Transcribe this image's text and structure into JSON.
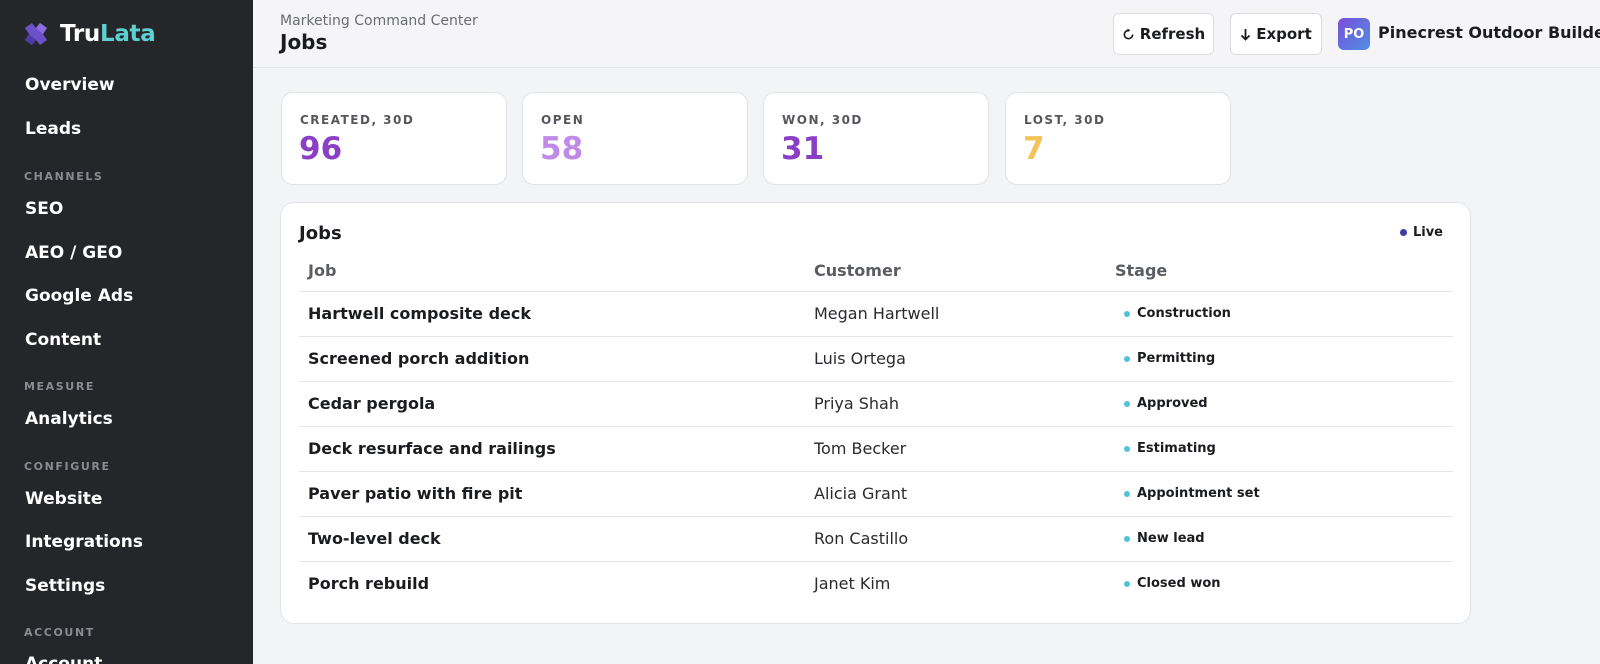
{
  "app": {
    "logo_part1": "Tru",
    "logo_part2": "Lata"
  },
  "sidebar": {
    "items": [
      {
        "label": "Overview"
      },
      {
        "label": "Leads"
      }
    ],
    "sections": [
      {
        "title": "CHANNELS",
        "items": [
          "SEO",
          "AEO / GEO",
          "Google Ads",
          "Content"
        ]
      },
      {
        "title": "MEASURE",
        "items": [
          "Analytics"
        ]
      },
      {
        "title": "CONFIGURE",
        "items": [
          "Website",
          "Integrations",
          "Settings"
        ]
      },
      {
        "title": "ACCOUNT",
        "items": [
          "Account"
        ]
      }
    ]
  },
  "header": {
    "breadcrumb": "Marketing Command Center",
    "title": "Jobs",
    "refresh_label": "Refresh",
    "export_label": "Export",
    "avatar_initials": "PO",
    "org_name": "Pinecrest Outdoor Builders"
  },
  "stats": [
    {
      "label": "CREATED, 30D",
      "value": "96",
      "color": "#8a3fc4"
    },
    {
      "label": "OPEN",
      "value": "58",
      "color": "#c08ae8"
    },
    {
      "label": "WON, 30D",
      "value": "31",
      "color": "#8a3fc4"
    },
    {
      "label": "LOST, 30D",
      "value": "7",
      "color": "#f4c35a"
    }
  ],
  "jobs_panel": {
    "title": "Jobs",
    "live_label": "Live",
    "columns": [
      "Job",
      "Customer",
      "Stage"
    ],
    "rows": [
      {
        "job": "Hartwell composite deck",
        "customer": "Megan Hartwell",
        "stage": "Construction"
      },
      {
        "job": "Screened porch addition",
        "customer": "Luis Ortega",
        "stage": "Permitting"
      },
      {
        "job": "Cedar pergola",
        "customer": "Priya Shah",
        "stage": "Approved"
      },
      {
        "job": "Deck resurface and railings",
        "customer": "Tom Becker",
        "stage": "Estimating"
      },
      {
        "job": "Paver patio with fire pit",
        "customer": "Alicia Grant",
        "stage": "Appointment set"
      },
      {
        "job": "Two-level deck",
        "customer": "Ron Castillo",
        "stage": "New lead"
      },
      {
        "job": "Porch rebuild",
        "customer": "Janet Kim",
        "stage": "Closed won"
      }
    ]
  }
}
